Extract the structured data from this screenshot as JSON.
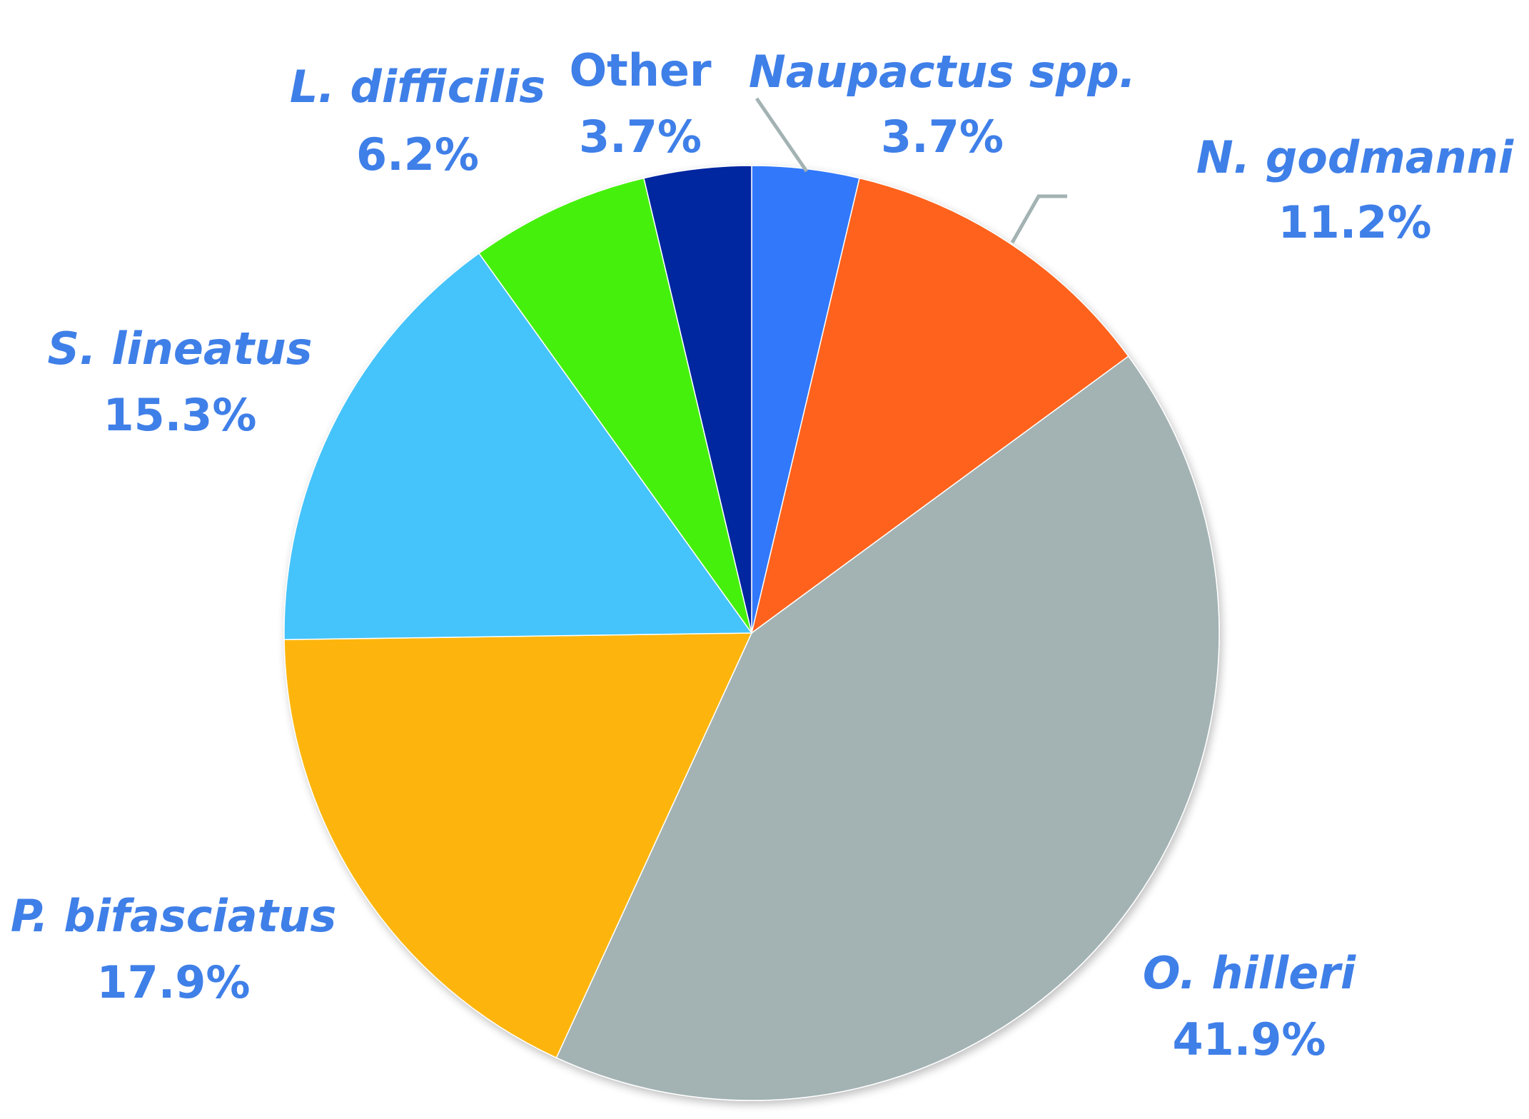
{
  "chart_data": {
    "type": "pie",
    "title": "",
    "start_angle_deg": 0,
    "direction": "clockwise",
    "label_color": "#3f7fe8",
    "slices": [
      {
        "label": "Naupactus spp.",
        "value": 3.7,
        "value_text": "3.7%",
        "color": "#3178fb"
      },
      {
        "label": "N. godmanni",
        "value": 11.2,
        "value_text": "11.2%",
        "color": "#ff621f"
      },
      {
        "label": "O. hilleri",
        "value": 41.9,
        "value_text": "41.9%",
        "color": "#a3b2b3"
      },
      {
        "label": "P. bifasciatus",
        "value": 17.9,
        "value_text": "17.9%",
        "color": "#fdb508"
      },
      {
        "label": "S. lineatus",
        "value": 15.3,
        "value_text": "15.3%",
        "color": "#45c3fb"
      },
      {
        "label": "L. difficilis",
        "value": 6.2,
        "value_text": "6.2%",
        "color": "#45f00a"
      },
      {
        "label": "Other",
        "value": 3.7,
        "value_text": "3.7%",
        "color": "#0028a0"
      }
    ]
  }
}
